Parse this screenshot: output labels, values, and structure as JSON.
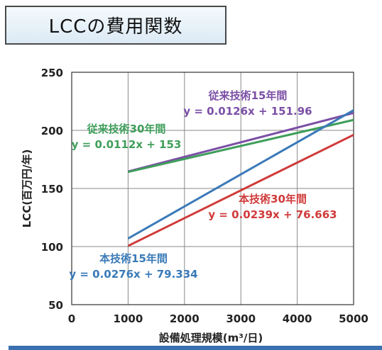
{
  "title": "LCCの費用関数",
  "chart_data": {
    "type": "line",
    "xlabel": "設備処理規模(m³/日)",
    "ylabel": "LCC(百万円/年)",
    "xlim": [
      0,
      5000
    ],
    "ylim": [
      50,
      250
    ],
    "x_ticks": [
      "0",
      "1000",
      "2000",
      "3000",
      "4000",
      "5000"
    ],
    "y_ticks": [
      "50",
      "100",
      "150",
      "200",
      "250"
    ],
    "grid": true,
    "series": [
      {
        "name": "従来技術15年間",
        "equation": "y = 0.0126x + 151.96",
        "color": "#7b4fa6",
        "slope": 0.0126,
        "intercept": 151.96,
        "x": [
          1000,
          5000
        ]
      },
      {
        "name": "従来技術30年間",
        "equation": "y = 0.0112x + 153",
        "color": "#3f9e5a",
        "slope": 0.0112,
        "intercept": 153,
        "x": [
          1000,
          5000
        ]
      },
      {
        "name": "本技術30年間",
        "equation": "y = 0.0239x + 76.663",
        "color": "#d03a3a",
        "slope": 0.0239,
        "intercept": 76.663,
        "x": [
          1000,
          5000
        ]
      },
      {
        "name": "本技術15年間",
        "equation": "y = 0.0276x + 79.334",
        "color": "#3a7ab8",
        "slope": 0.0276,
        "intercept": 79.334,
        "x": [
          1000,
          5000
        ]
      }
    ]
  }
}
